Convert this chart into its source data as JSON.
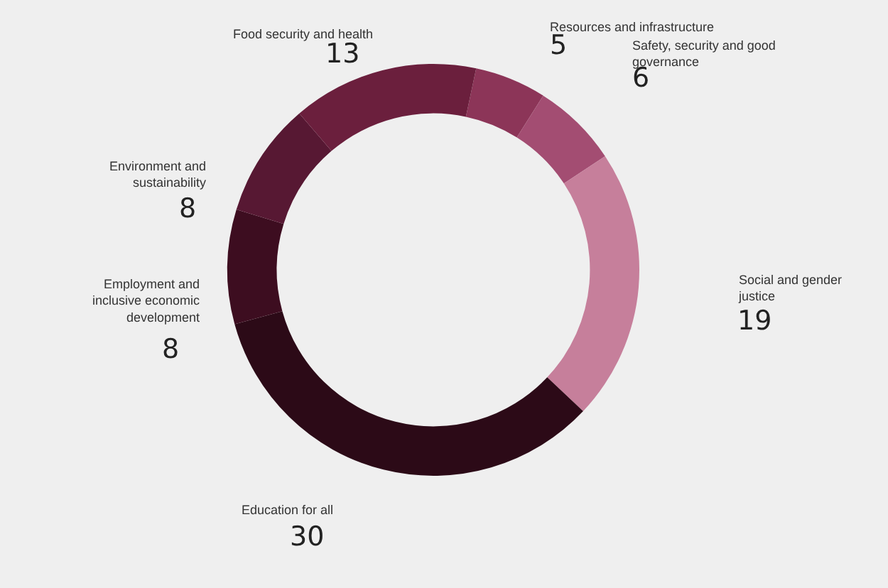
{
  "chart_data": {
    "type": "donut",
    "categories": [
      "Resources and infrastructure",
      "Safety, security and good governance",
      "Social and gender justice",
      "Education for all",
      "Employment and inclusive economic development",
      "Environment and sustainability",
      "Food security and health"
    ],
    "values": [
      5,
      6,
      19,
      30,
      8,
      8,
      13
    ],
    "colors": [
      "#8c3558",
      "#a34d72",
      "#c67f9b",
      "#2c0a17",
      "#3d0d20",
      "#571833",
      "#6b1f3d"
    ],
    "data_labels": true,
    "legend": false
  }
}
